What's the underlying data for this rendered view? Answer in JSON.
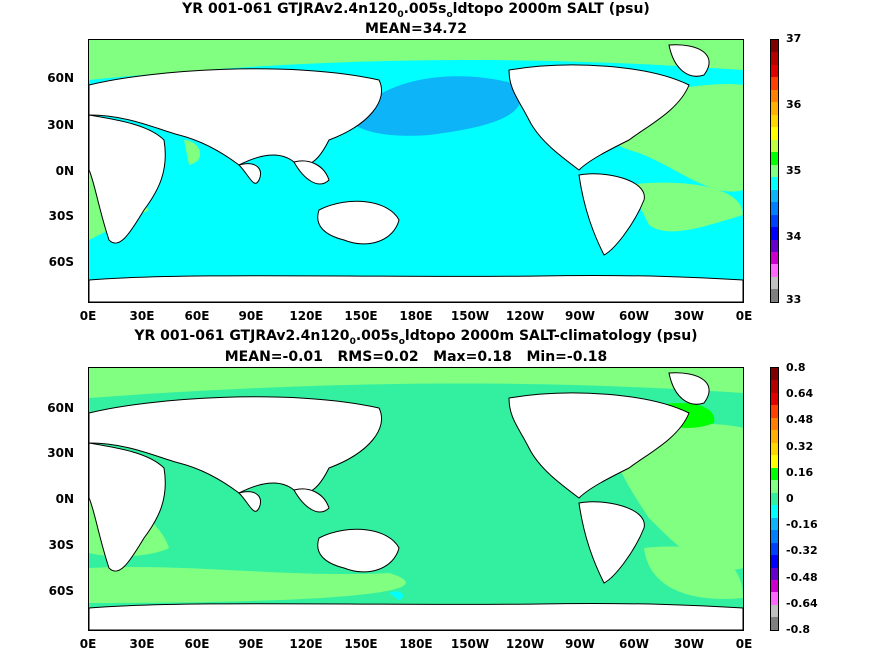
{
  "colors": {
    "land": "#ffffff",
    "coastline": "#000000",
    "ocean_top_main": "#00ffff",
    "ocean_top_low": "#0db4f7",
    "ocean_top_high": "#80ff80",
    "ocean_bottom_main": "#33f0a0",
    "ocean_bottom_pos": "#80ff80",
    "ocean_bottom_pos_strong": "#00ff00"
  },
  "panels": [
    {
      "title_pre": "YR 001-061 GTJRAv2.4n120",
      "title_sub1": "0",
      "title_mid": ".005s",
      "title_sub2": "o",
      "title_post": "ldtopo 2000m SALT (psu)",
      "stats": "MEAN=34.72",
      "x_ticks": [
        "0E",
        "30E",
        "60E",
        "90E",
        "120E",
        "150E",
        "180E",
        "150W",
        "120W",
        "90W",
        "60W",
        "30W",
        "0E"
      ],
      "y_ticks": [
        "60N",
        "30N",
        "0N",
        "30S",
        "60S"
      ],
      "colorbar_labels": [
        "37",
        "36",
        "35",
        "34",
        "33"
      ],
      "colorbar_colors": [
        "#7f0000",
        "#b50000",
        "#e00000",
        "#ff4000",
        "#ff8000",
        "#ffb000",
        "#ffd700",
        "#ffff00",
        "#c0ff40",
        "#00ff00",
        "#80ff80",
        "#00ffff",
        "#0db4f7",
        "#0080ff",
        "#0040ff",
        "#0000ff",
        "#6600cc",
        "#cc00cc",
        "#ff66ff",
        "#c0c0c0",
        "#808080"
      ]
    },
    {
      "title_pre": "YR 001-061 GTJRAv2.4n120",
      "title_sub1": "0",
      "title_mid": ".005s",
      "title_sub2": "o",
      "title_post": "ldtopo 2000m SALT-climatology (psu)",
      "stats": "MEAN=-0.01   RMS=0.02   Max=0.18   Min=-0.18",
      "x_ticks": [
        "0E",
        "30E",
        "60E",
        "90E",
        "120E",
        "150E",
        "180E",
        "150W",
        "120W",
        "90W",
        "60W",
        "30W",
        "0E"
      ],
      "y_ticks": [
        "60N",
        "30N",
        "0N",
        "30S",
        "60S"
      ],
      "colorbar_labels": [
        "0.8",
        "0.64",
        "0.48",
        "0.32",
        "0.16",
        "0",
        "-0.16",
        "-0.32",
        "-0.48",
        "-0.64",
        "-0.8"
      ],
      "colorbar_colors": [
        "#7f0000",
        "#b50000",
        "#e00000",
        "#ff4000",
        "#ff8000",
        "#ffb000",
        "#ffd700",
        "#ffff00",
        "#00ff00",
        "#80ff80",
        "#33f0a0",
        "#00ffff",
        "#0db4f7",
        "#0080ff",
        "#0040ff",
        "#0000ff",
        "#6600cc",
        "#cc00cc",
        "#ff66ff",
        "#c0c0c0",
        "#808080"
      ]
    }
  ]
}
